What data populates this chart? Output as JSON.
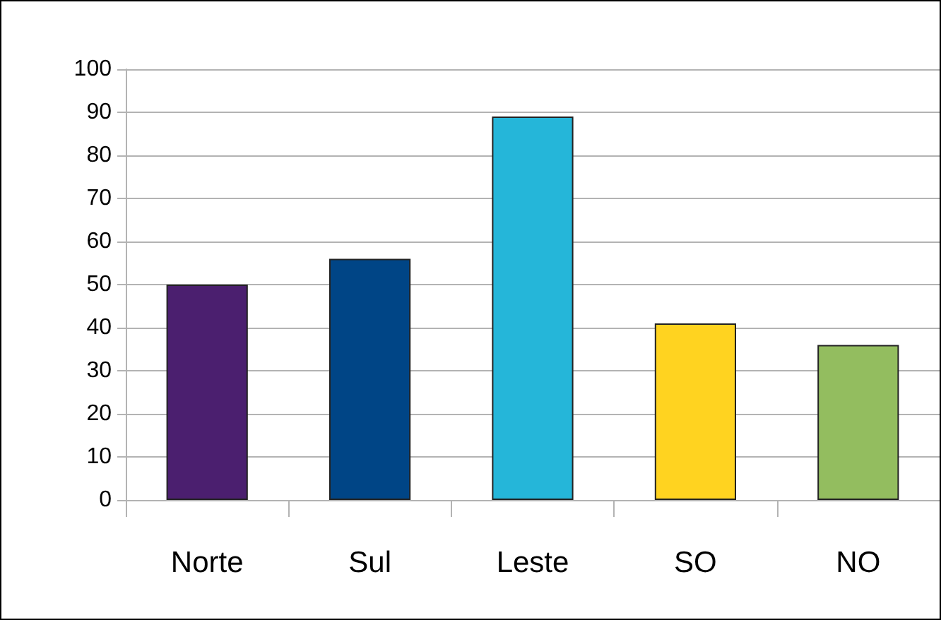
{
  "chart_data": {
    "type": "bar",
    "categories": [
      "Norte",
      "Sul",
      "Leste",
      "SO",
      "NO"
    ],
    "values": [
      50,
      56,
      89,
      41,
      36
    ],
    "colors": [
      "#4b1f6f",
      "#004586",
      "#25b6d9",
      "#ffd320",
      "#93bd5f"
    ],
    "ylim": [
      0,
      100
    ],
    "yticks": [
      0,
      10,
      20,
      30,
      40,
      50,
      60,
      70,
      80,
      90,
      100
    ],
    "grid": "y"
  }
}
